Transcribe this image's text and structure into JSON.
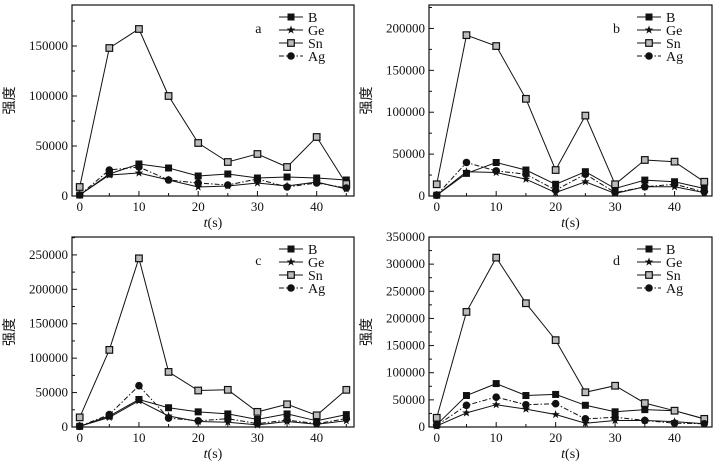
{
  "chart_data": [
    {
      "type": "line",
      "panel_label": "a",
      "xlabel_italic": "t",
      "xlabel_unit": "(s)",
      "ylabel": "强度",
      "x": [
        0,
        5,
        10,
        15,
        20,
        25,
        30,
        35,
        40,
        45
      ],
      "xlim": [
        -1.3,
        46.3
      ],
      "ylim": [
        0,
        191000
      ],
      "xticks": [
        0,
        10,
        20,
        30,
        40
      ],
      "yticks": [
        0,
        50000,
        100000,
        150000
      ],
      "series": [
        {
          "name": "B",
          "values": [
            1000,
            22000,
            32000,
            28000,
            20000,
            22000,
            18000,
            19000,
            18000,
            16000
          ]
        },
        {
          "name": "Ge",
          "values": [
            1000,
            21000,
            23000,
            16000,
            9000,
            10000,
            13000,
            10000,
            14000,
            7000
          ]
        },
        {
          "name": "Sn",
          "values": [
            9000,
            148000,
            167000,
            100000,
            53000,
            34000,
            42000,
            29000,
            59000,
            12000
          ]
        },
        {
          "name": "Ag",
          "values": [
            1000,
            26000,
            29000,
            16000,
            13000,
            11000,
            17000,
            9000,
            13000,
            8000
          ]
        }
      ],
      "legend": "top-right"
    },
    {
      "type": "line",
      "panel_label": "b",
      "xlabel_italic": "t",
      "xlabel_unit": "(s)",
      "ylabel": "强度",
      "x": [
        0,
        5,
        10,
        15,
        20,
        25,
        30,
        35,
        40,
        45
      ],
      "xlim": [
        -1.3,
        46.3
      ],
      "ylim": [
        0,
        228000
      ],
      "xticks": [
        0,
        10,
        20,
        30,
        40
      ],
      "yticks": [
        0,
        50000,
        100000,
        150000,
        200000
      ],
      "series": [
        {
          "name": "B",
          "values": [
            1000,
            27000,
            40000,
            31000,
            14000,
            29000,
            9000,
            19000,
            17000,
            9000
          ]
        },
        {
          "name": "Ge",
          "values": [
            1000,
            29000,
            28000,
            20000,
            4000,
            17000,
            3000,
            11000,
            11000,
            4000
          ]
        },
        {
          "name": "Sn",
          "values": [
            14000,
            192000,
            179000,
            116000,
            31000,
            96000,
            14000,
            43000,
            41000,
            17000
          ]
        },
        {
          "name": "Ag",
          "values": [
            1000,
            40000,
            30000,
            26000,
            7000,
            26000,
            4000,
            11000,
            14000,
            5000
          ]
        }
      ],
      "legend": "top-right"
    },
    {
      "type": "line",
      "panel_label": "c",
      "xlabel_italic": "t",
      "xlabel_unit": "(s)",
      "ylabel": "强度",
      "x": [
        0,
        5,
        10,
        15,
        20,
        25,
        30,
        35,
        40,
        45
      ],
      "xlim": [
        -1.3,
        46.3
      ],
      "ylim": [
        0,
        276000
      ],
      "xticks": [
        0,
        10,
        20,
        30,
        40
      ],
      "yticks": [
        0,
        50000,
        100000,
        150000,
        200000,
        250000
      ],
      "series": [
        {
          "name": "B",
          "values": [
            1000,
            16000,
            40000,
            28000,
            22000,
            19000,
            11000,
            19000,
            9000,
            18000
          ]
        },
        {
          "name": "Ge",
          "values": [
            1000,
            14000,
            38000,
            16000,
            8000,
            7000,
            3000,
            8000,
            4000,
            9000
          ]
        },
        {
          "name": "Sn",
          "values": [
            14000,
            112000,
            245000,
            80000,
            53000,
            54000,
            22000,
            33000,
            17000,
            54000
          ]
        },
        {
          "name": "Ag",
          "values": [
            1000,
            18000,
            60000,
            13000,
            9000,
            12000,
            5000,
            10000,
            5000,
            12000
          ]
        }
      ],
      "legend": "top-right"
    },
    {
      "type": "line",
      "panel_label": "d",
      "xlabel_italic": "t",
      "xlabel_unit": "(s)",
      "ylabel": "强度",
      "x": [
        0,
        5,
        10,
        15,
        20,
        25,
        30,
        35,
        40,
        45
      ],
      "xlim": [
        -1.3,
        46.3
      ],
      "ylim": [
        0,
        350000
      ],
      "xticks": [
        0,
        10,
        20,
        30,
        40
      ],
      "yticks": [
        0,
        50000,
        100000,
        150000,
        200000,
        250000,
        300000,
        350000
      ],
      "series": [
        {
          "name": "B",
          "values": [
            4000,
            58000,
            80000,
            58000,
            60000,
            40000,
            28000,
            32000,
            30000,
            15000
          ]
        },
        {
          "name": "Ge",
          "values": [
            2000,
            26000,
            41000,
            33000,
            23000,
            7000,
            12000,
            12000,
            10000,
            6000
          ]
        },
        {
          "name": "Sn",
          "values": [
            17000,
            212000,
            312000,
            228000,
            160000,
            64000,
            76000,
            44000,
            30000,
            15000
          ]
        },
        {
          "name": "Ag",
          "values": [
            3000,
            40000,
            55000,
            41000,
            43000,
            15000,
            18000,
            12000,
            7000,
            6000
          ]
        }
      ],
      "legend": "top-right"
    }
  ]
}
